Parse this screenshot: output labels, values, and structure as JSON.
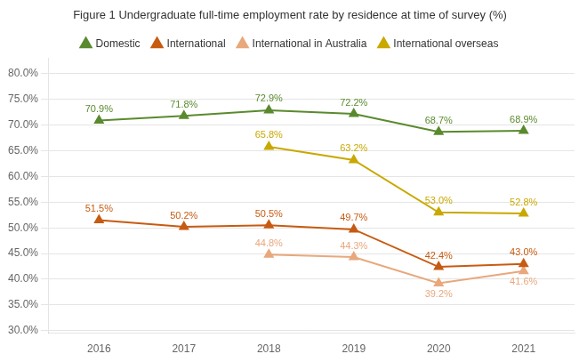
{
  "chart_data": {
    "type": "line",
    "title": "Figure 1 Undergraduate full-time employment rate by residence at time of survey (%)",
    "x": [
      2016,
      2017,
      2018,
      2019,
      2020,
      2021
    ],
    "series": [
      {
        "name": "Domestic",
        "color": "#5a8a2e",
        "marker": "triangle",
        "values": [
          70.9,
          71.8,
          72.9,
          72.2,
          68.7,
          68.9
        ],
        "value_labels": [
          "70.9%",
          "71.8%",
          "72.9%",
          "72.2%",
          "68.7%",
          "68.9%"
        ]
      },
      {
        "name": "International",
        "color": "#c75b12",
        "marker": "triangle",
        "values": [
          51.5,
          50.2,
          50.5,
          49.7,
          42.4,
          43.0
        ],
        "value_labels": [
          "51.5%",
          "50.2%",
          "50.5%",
          "49.7%",
          "42.4%",
          "43.0%"
        ]
      },
      {
        "name": "International in Australia",
        "color": "#e8a87c",
        "marker": "triangle",
        "values": [
          null,
          null,
          44.8,
          44.3,
          39.2,
          41.6
        ],
        "value_labels": [
          null,
          null,
          "44.8%",
          "44.3%",
          "39.2%",
          "41.6%"
        ]
      },
      {
        "name": "International overseas",
        "color": "#c9a800",
        "marker": "triangle",
        "values": [
          null,
          null,
          65.8,
          63.2,
          53.0,
          52.8
        ],
        "value_labels": [
          null,
          null,
          "65.8%",
          "63.2%",
          "53.0%",
          "52.8%"
        ]
      }
    ],
    "xlim": [
      2015.4,
      2021.6
    ],
    "xticks": [
      2016,
      2017,
      2018,
      2019,
      2020,
      2021
    ],
    "ylim": [
      29.5,
      83.0
    ],
    "yticks": [
      {
        "value": 30.0,
        "label": "30.0%"
      },
      {
        "value": 35.0,
        "label": "35.0%"
      },
      {
        "value": 40.0,
        "label": "40.0%"
      },
      {
        "value": 45.0,
        "label": "45.0%"
      },
      {
        "value": 50.0,
        "label": "50.0%"
      },
      {
        "value": 55.0,
        "label": "55.0%"
      },
      {
        "value": 60.0,
        "label": "60.0%"
      },
      {
        "value": 65.0,
        "label": "65.0%"
      },
      {
        "value": 70.0,
        "label": "70.0%"
      },
      {
        "value": 75.0,
        "label": "75.0%"
      },
      {
        "value": 80.0,
        "label": "80.0%"
      }
    ],
    "grid": true,
    "legend": "top",
    "data_labels": true
  }
}
